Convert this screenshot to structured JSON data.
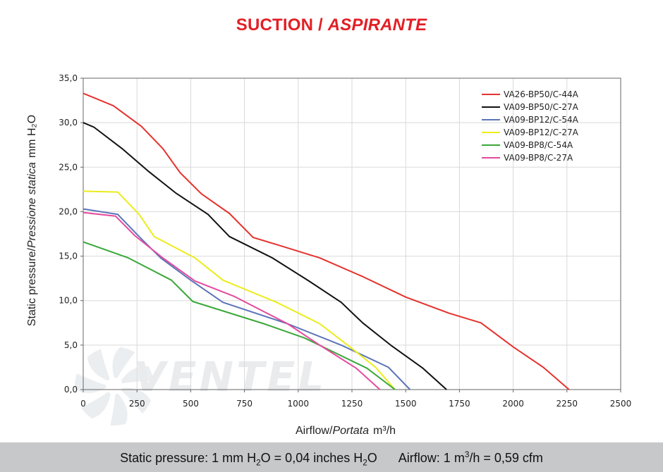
{
  "title": {
    "main": "SUCTION /",
    "italic": "ASPIRANTE"
  },
  "footer": {
    "pressure_a": "Static pressure: 1 mm H",
    "pressure_sub1": "2",
    "pressure_b": "O = 0,04 inches H",
    "pressure_sub2": "2",
    "pressure_c": "O",
    "airflow_a": "Airflow: 1 m",
    "airflow_sup": "3",
    "airflow_b": "/h = 0,59 cfm"
  },
  "watermark": {
    "text": "VENTEL"
  },
  "chart_data": {
    "type": "line",
    "xlabel": {
      "main": "Airflow",
      "sep": "/",
      "italic": "Portata",
      "unit": "m³/h"
    },
    "ylabel": {
      "main": "Static pressure",
      "sep": "/",
      "italic": "Pressione statica",
      "unit": "mm H₂O"
    },
    "xlim": [
      0,
      2500
    ],
    "ylim": [
      0,
      35
    ],
    "x_ticks": [
      0,
      250,
      500,
      750,
      1000,
      1250,
      1500,
      1750,
      2000,
      2250,
      2500
    ],
    "x_tick_labels": [
      "0",
      "250",
      "500",
      "750",
      "1000",
      "1250",
      "1500",
      "1750",
      "2000",
      "2250",
      "2500"
    ],
    "y_ticks": [
      0,
      5,
      10,
      15,
      20,
      25,
      30,
      35
    ],
    "y_tick_labels": [
      "0,0",
      "5,0",
      "10,0",
      "15,0",
      "20,0",
      "25,0",
      "30,0",
      "35,0"
    ],
    "grid": true,
    "legend_position": "top-right",
    "series": [
      {
        "name": "VA26-BP50/C-44A",
        "color": "#e5322d",
        "points": [
          [
            0,
            33.3
          ],
          [
            140,
            31.9
          ],
          [
            270,
            29.6
          ],
          [
            370,
            27.1
          ],
          [
            450,
            24.4
          ],
          [
            550,
            22.0
          ],
          [
            680,
            19.8
          ],
          [
            790,
            17.1
          ],
          [
            900,
            16.3
          ],
          [
            1100,
            14.8
          ],
          [
            1300,
            12.7
          ],
          [
            1500,
            10.4
          ],
          [
            1700,
            8.6
          ],
          [
            1850,
            7.5
          ],
          [
            2000,
            4.8
          ],
          [
            2140,
            2.5
          ],
          [
            2260,
            0
          ]
        ]
      },
      {
        "name": "VA09-BP50/C-27A",
        "color": "#111111",
        "points": [
          [
            0,
            30.0
          ],
          [
            50,
            29.5
          ],
          [
            180,
            27.1
          ],
          [
            300,
            24.6
          ],
          [
            430,
            22.1
          ],
          [
            580,
            19.7
          ],
          [
            680,
            17.2
          ],
          [
            880,
            14.8
          ],
          [
            1050,
            12.2
          ],
          [
            1200,
            9.8
          ],
          [
            1300,
            7.5
          ],
          [
            1430,
            5.0
          ],
          [
            1580,
            2.4
          ],
          [
            1690,
            0
          ]
        ]
      },
      {
        "name": "VA09-BP12/C-54A",
        "color": "#5b74b8",
        "points": [
          [
            0,
            20.3
          ],
          [
            160,
            19.7
          ],
          [
            260,
            17.2
          ],
          [
            360,
            14.8
          ],
          [
            500,
            12.3
          ],
          [
            650,
            9.8
          ],
          [
            950,
            7.4
          ],
          [
            1200,
            5.0
          ],
          [
            1420,
            2.5
          ],
          [
            1520,
            0
          ]
        ]
      },
      {
        "name": "VA09-BP12/C-27A",
        "color": "#ecec1a",
        "points": [
          [
            0,
            22.3
          ],
          [
            160,
            22.2
          ],
          [
            260,
            19.7
          ],
          [
            330,
            17.2
          ],
          [
            520,
            14.8
          ],
          [
            650,
            12.3
          ],
          [
            900,
            9.8
          ],
          [
            1100,
            7.4
          ],
          [
            1230,
            5.0
          ],
          [
            1360,
            2.5
          ],
          [
            1450,
            0
          ]
        ]
      },
      {
        "name": "VA09-BP8/C-54A",
        "color": "#3aa83a",
        "points": [
          [
            0,
            16.6
          ],
          [
            210,
            14.8
          ],
          [
            410,
            12.3
          ],
          [
            510,
            9.9
          ],
          [
            840,
            7.4
          ],
          [
            1030,
            5.8
          ],
          [
            1320,
            2.4
          ],
          [
            1450,
            0
          ]
        ]
      },
      {
        "name": "VA09-BP8/C-27A",
        "color": "#e54a9e",
        "points": [
          [
            0,
            19.9
          ],
          [
            150,
            19.5
          ],
          [
            240,
            17.3
          ],
          [
            370,
            14.8
          ],
          [
            520,
            12.2
          ],
          [
            700,
            10.5
          ],
          [
            950,
            7.4
          ],
          [
            1100,
            5.0
          ],
          [
            1270,
            2.4
          ],
          [
            1380,
            0
          ]
        ]
      }
    ]
  }
}
